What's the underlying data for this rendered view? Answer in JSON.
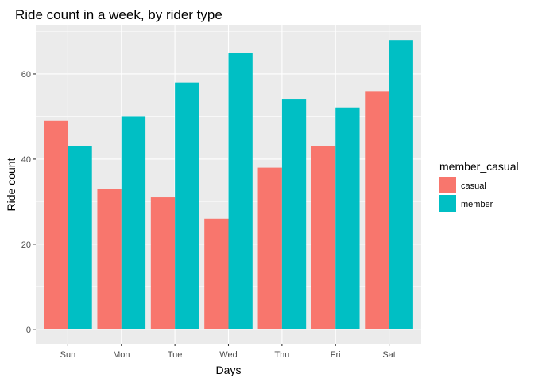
{
  "chart_data": {
    "type": "bar",
    "title": "Ride count in a week, by rider type",
    "xlabel": "Days",
    "ylabel": "Ride count",
    "categories": [
      "Sun",
      "Mon",
      "Tue",
      "Wed",
      "Thu",
      "Fri",
      "Sat"
    ],
    "series": [
      {
        "name": "casual",
        "color": "#F8766D",
        "values": [
          49,
          33,
          31,
          26,
          38,
          43,
          56
        ]
      },
      {
        "name": "member",
        "color": "#00BFC4",
        "values": [
          43,
          50,
          58,
          65,
          54,
          52,
          68
        ]
      }
    ],
    "ylim": [
      -3.4,
      71.4
    ],
    "yticks": [
      0,
      20,
      40,
      60
    ],
    "grid": true,
    "legend": {
      "title": "member_casual",
      "position": "right"
    },
    "panel_background": "#EBEBEB",
    "grid_color": "#FFFFFF"
  }
}
